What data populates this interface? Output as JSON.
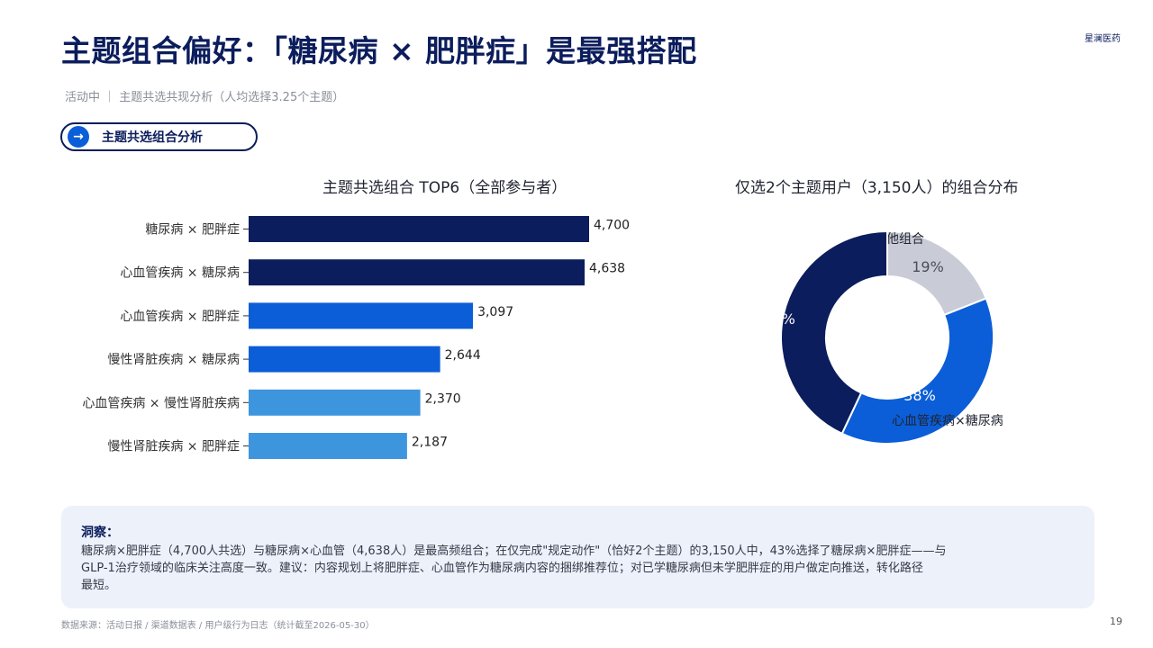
{
  "header": {
    "title": "主题组合偏好：「糖尿病 × 肥胖症」是最强搭配",
    "brand": "星澜医药",
    "subtitle": "活动中 ｜ 主题共选共现分析（人均选择3.25个主题）"
  },
  "section_pill": {
    "icon": "arrow-right-icon",
    "label": "主题共选组合分析"
  },
  "chart_data": [
    {
      "type": "bar",
      "orientation": "horizontal",
      "title": "主题共选组合 TOP6（全部参与者）",
      "categories": [
        "糖尿病 × 肥胖症",
        "心血管疾病 × 糖尿病",
        "心血管疾病 × 肥胖症",
        "慢性肾脏疾病 × 糖尿病",
        "心血管疾病 × 慢性肾脏疾病",
        "慢性肾脏疾病 × 肥胖症"
      ],
      "values": [
        4700,
        4638,
        3097,
        2644,
        2370,
        2187
      ],
      "value_labels": [
        "4,700",
        "4,638",
        "3,097",
        "2,644",
        "2,370",
        "2,187"
      ],
      "colors": [
        "#0b1d5c",
        "#0b1d5c",
        "#0b5ed7",
        "#0b5ed7",
        "#3d95de",
        "#3d95de"
      ],
      "xlim": [
        0,
        4700
      ],
      "grid": false
    },
    {
      "type": "pie",
      "donut": true,
      "title": "仅选2个主题用户（3,150人）的组合分布",
      "slices": [
        {
          "label": "其他组合",
          "value": 19,
          "value_label": "19%",
          "color": "#c9ccd6"
        },
        {
          "label": "心血管疾病×糖尿病",
          "value": 38,
          "value_label": "38%",
          "color": "#0b5ed7"
        },
        {
          "label": "糖尿病×肥胖症",
          "value": 43,
          "value_label": "43%",
          "color": "#0b1d5c"
        }
      ]
    }
  ],
  "insight": {
    "title": "洞察：",
    "lines": [
      "糖尿病×肥胖症（4,700人共选）与糖尿病×心血管（4,638人）是最高频组合；在仅完成\"规定动作\"（恰好2个主题）的3,150人中，43%选择了糖尿病×肥胖症——与",
      "GLP-1治疗领域的临床关注高度一致。建议：内容规划上将肥胖症、心血管作为糖尿病内容的捆绑推荐位；对已学糖尿病但未学肥胖症的用户做定向推送，转化路径",
      "最短。"
    ]
  },
  "footer": {
    "source": "数据来源：活动日报 / 渠道数据表 / 用户级行为日志（统计截至2026-05-30）",
    "page": "19"
  }
}
